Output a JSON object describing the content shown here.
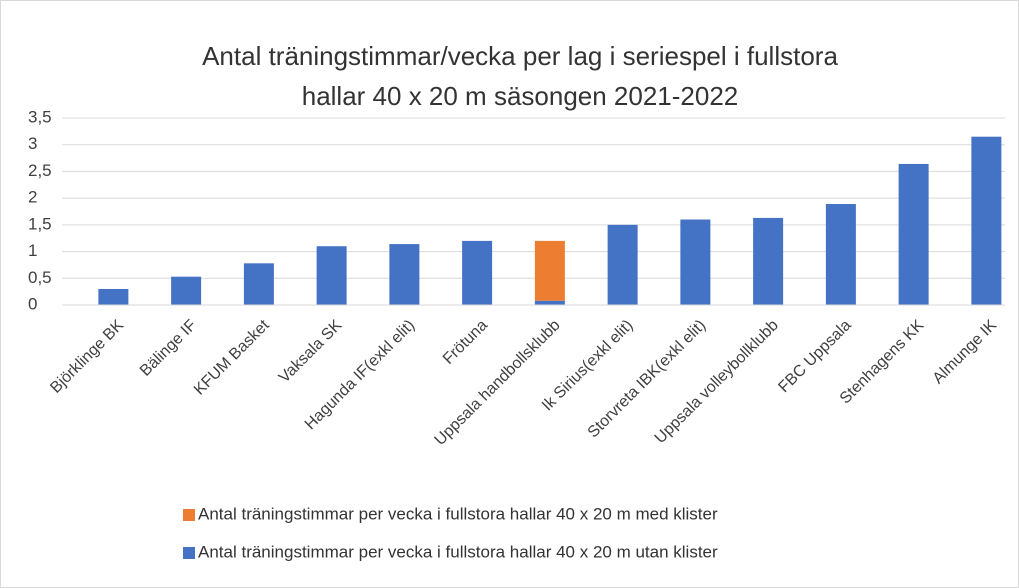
{
  "chart_data": {
    "type": "stacked_bar",
    "title": [
      "Antal träningstimmar/vecka per lag i seriespel i fullstora",
      "hallar 40 x 20 m säsongen 2021-2022"
    ],
    "categories": [
      "Björklinge BK",
      "Bälinge IF",
      "KFUM Basket",
      "Vaksala SK",
      "Hagunda IF(exkl elit)",
      "Frötuna",
      "Uppsala handbollsklubb",
      "Ik Sirius(exkl elit)",
      "Storvreta IBK(exkl elit)",
      "Uppsala volleybollklubb",
      "FBC Uppsala",
      "Stenhagens KK",
      "Almunge IK"
    ],
    "series": [
      {
        "name": "Antal träningstimmar per vecka i fullstora hallar 40 x 20 m utan klister",
        "color": "#4472c4",
        "values": [
          0.3,
          0.53,
          0.78,
          1.1,
          1.14,
          1.2,
          0.08,
          1.5,
          1.6,
          1.63,
          1.89,
          2.64,
          3.15
        ]
      },
      {
        "name": "Antal träningstimmar per vecka i fullstora hallar 40 x 20 m med klister",
        "color": "#ed7d31",
        "values": [
          0,
          0,
          0,
          0,
          0,
          0,
          1.12,
          0,
          0,
          0,
          0,
          0,
          0
        ]
      }
    ],
    "ylim": [
      0,
      3.5
    ],
    "yticks": [
      0,
      {
        "value": 0.5,
        "label": "0,5"
      },
      1,
      {
        "value": 1.5,
        "label": "1,5"
      },
      2,
      {
        "value": 2.5,
        "label": "2,5"
      },
      3,
      {
        "value": 3.5,
        "label": "3,5"
      }
    ],
    "grid": true
  }
}
